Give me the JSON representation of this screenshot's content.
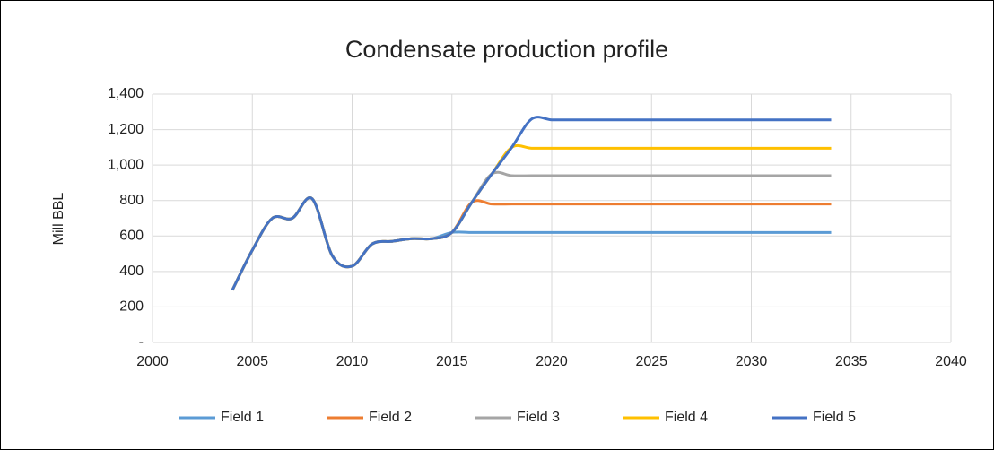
{
  "chart_data": {
    "type": "line",
    "title": "Condensate production profile",
    "y_label": "Mill BBL",
    "x": [
      2004,
      2005,
      2006,
      2007,
      2008,
      2009,
      2010,
      2011,
      2012,
      2013,
      2014,
      2015,
      2016,
      2017,
      2018,
      2019,
      2020,
      2021,
      2022,
      2023,
      2024,
      2025,
      2026,
      2027,
      2028,
      2029,
      2030,
      2031,
      2032,
      2033,
      2034
    ],
    "series": [
      {
        "name": "Field 1",
        "color": "#5b9bd5",
        "values": [
          295,
          520,
          700,
          700,
          810,
          490,
          430,
          555,
          570,
          585,
          585,
          620,
          620,
          620,
          620,
          620,
          620,
          620,
          620,
          620,
          620,
          620,
          620,
          620,
          620,
          620,
          620,
          620,
          620,
          620,
          620
        ]
      },
      {
        "name": "Field 2",
        "color": "#ed7d31",
        "values": [
          295,
          520,
          700,
          700,
          810,
          490,
          430,
          555,
          570,
          585,
          585,
          620,
          790,
          780,
          780,
          780,
          780,
          780,
          780,
          780,
          780,
          780,
          780,
          780,
          780,
          780,
          780,
          780,
          780,
          780,
          780
        ]
      },
      {
        "name": "Field 3",
        "color": "#a5a5a5",
        "values": [
          295,
          520,
          700,
          700,
          810,
          490,
          430,
          555,
          570,
          585,
          585,
          620,
          790,
          950,
          940,
          940,
          940,
          940,
          940,
          940,
          940,
          940,
          940,
          940,
          940,
          940,
          940,
          940,
          940,
          940,
          940
        ]
      },
      {
        "name": "Field 4",
        "color": "#ffc000",
        "values": [
          295,
          520,
          700,
          700,
          810,
          490,
          430,
          555,
          570,
          585,
          585,
          620,
          790,
          950,
          1100,
          1095,
          1095,
          1095,
          1095,
          1095,
          1095,
          1095,
          1095,
          1095,
          1095,
          1095,
          1095,
          1095,
          1095,
          1095,
          1095
        ]
      },
      {
        "name": "Field 5",
        "color": "#4472c4",
        "values": [
          295,
          520,
          700,
          700,
          810,
          490,
          430,
          555,
          570,
          585,
          585,
          620,
          790,
          950,
          1100,
          1260,
          1255,
          1255,
          1255,
          1255,
          1255,
          1255,
          1255,
          1255,
          1255,
          1255,
          1255,
          1255,
          1255,
          1255,
          1255
        ]
      }
    ],
    "xlim": [
      2000,
      2040
    ],
    "xticks": [
      2000,
      2005,
      2010,
      2015,
      2020,
      2025,
      2030,
      2035,
      2040
    ],
    "ylim": [
      0,
      1400
    ],
    "yticks": [
      {
        "value": 0,
        "label": "-"
      },
      200,
      400,
      600,
      800,
      {
        "value": 1000,
        "label": "1,000"
      },
      {
        "value": 1200,
        "label": "1,200"
      },
      {
        "value": 1400,
        "label": "1,400"
      }
    ],
    "grid": true,
    "legend": "bottom"
  }
}
